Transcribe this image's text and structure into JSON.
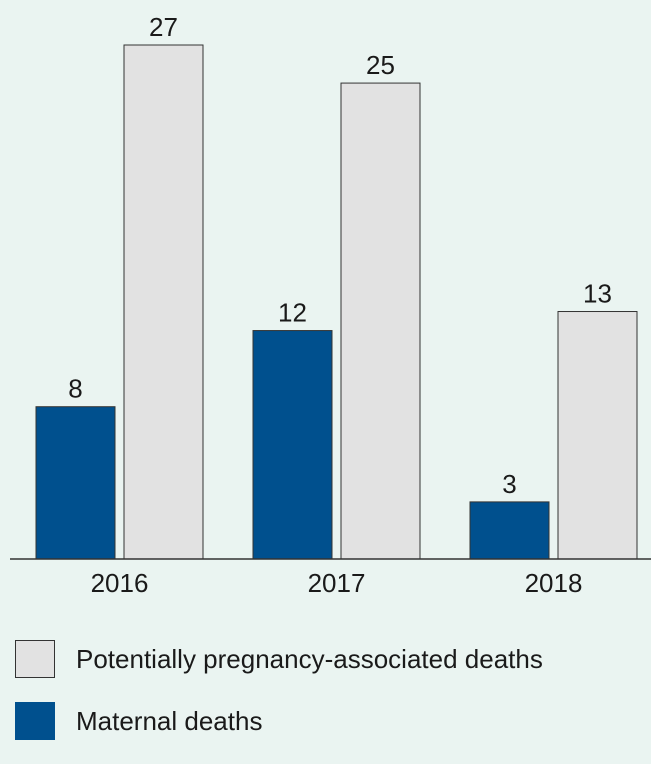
{
  "chart_data": {
    "type": "bar",
    "categories": [
      "2016",
      "2017",
      "2018"
    ],
    "series": [
      {
        "name": "Maternal deaths",
        "values": [
          8,
          12,
          3
        ],
        "color": "#00508e"
      },
      {
        "name": "Potentially pregnancy-associated deaths",
        "values": [
          27,
          25,
          13
        ],
        "color": "#e2e2e2"
      }
    ],
    "ylim": [
      0,
      27
    ],
    "grid": false,
    "legend_position": "bottom",
    "data_labels": true
  },
  "legend": [
    {
      "label": "Potentially pregnancy-associated deaths",
      "color": "#e2e2e2"
    },
    {
      "label": "Maternal deaths",
      "color": "#00508e"
    }
  ]
}
